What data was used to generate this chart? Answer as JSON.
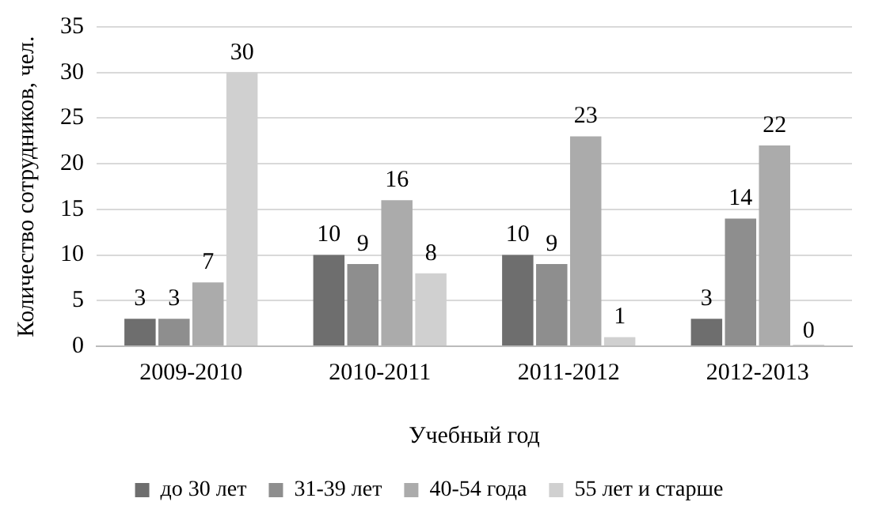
{
  "chart_data": {
    "type": "bar",
    "xlabel": "Учебный год",
    "ylabel": "Количество сотрудников, чел.",
    "categories": [
      "2009-2010",
      "2010-2011",
      "2011-2012",
      "2012-2013"
    ],
    "series": [
      {
        "name": "до 30 лет",
        "color": "#6e6e6e",
        "values": [
          3,
          10,
          10,
          3
        ]
      },
      {
        "name": "31-39 лет",
        "color": "#8e8e8e",
        "values": [
          3,
          9,
          9,
          14
        ]
      },
      {
        "name": "40-54 года",
        "color": "#ababab",
        "values": [
          7,
          16,
          23,
          22
        ]
      },
      {
        "name": "55 лет и старше",
        "color": "#d0d0d0",
        "values": [
          30,
          8,
          1,
          0
        ]
      }
    ],
    "ylim": [
      0,
      35
    ],
    "yticks": [
      0,
      5,
      10,
      15,
      20,
      25,
      30,
      35
    ],
    "grid": "y",
    "legend": "bottom",
    "data_labels": true
  }
}
